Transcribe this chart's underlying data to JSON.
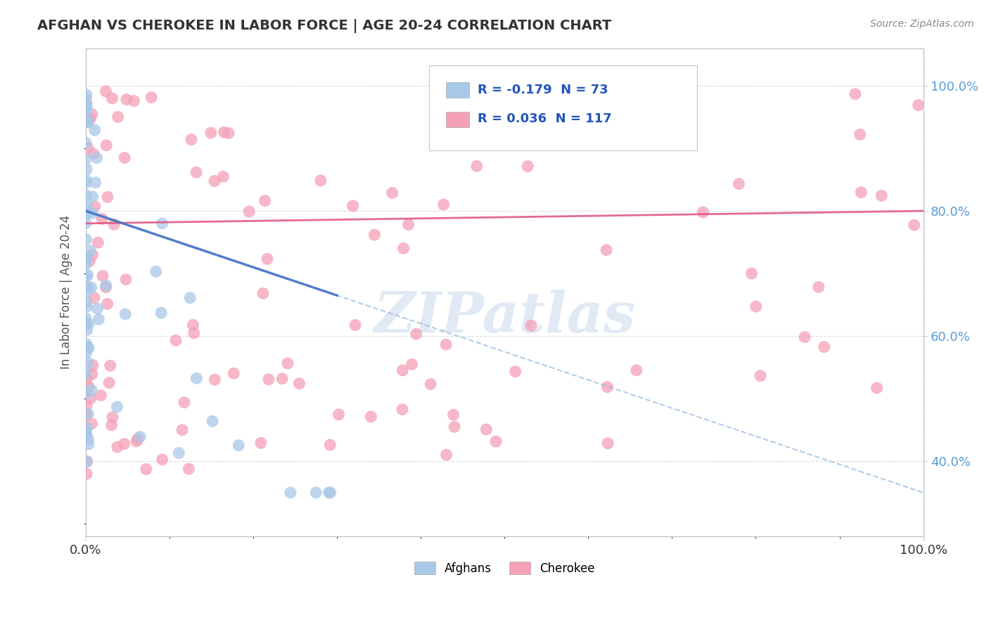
{
  "title": "AFGHAN VS CHEROKEE IN LABOR FORCE | AGE 20-24 CORRELATION CHART",
  "source": "Source: ZipAtlas.com",
  "ylabel": "In Labor Force | Age 20-24",
  "legend_afghan": {
    "R": -0.179,
    "N": 73,
    "label": "Afghans"
  },
  "legend_cherokee": {
    "R": 0.036,
    "N": 117,
    "label": "Cherokee"
  },
  "afghan_color": "#a8c8e8",
  "cherokee_color": "#f4a0b8",
  "afghan_trend_color": "#4472c4",
  "cherokee_trend_color": "#e05080",
  "afghan_trend_dashed_color": "#90b8e0",
  "watermark": "ZIPatlas",
  "watermark_color": "#c8d8ec",
  "background_color": "#ffffff",
  "grid_color": "#d8d8d8",
  "ytick_labels": [
    "40.0%",
    "60.0%",
    "80.0%",
    "100.0%"
  ],
  "ytick_values": [
    0.4,
    0.6,
    0.8,
    1.0
  ],
  "xlim": [
    0.0,
    1.0
  ],
  "ylim": [
    0.28,
    1.06
  ]
}
